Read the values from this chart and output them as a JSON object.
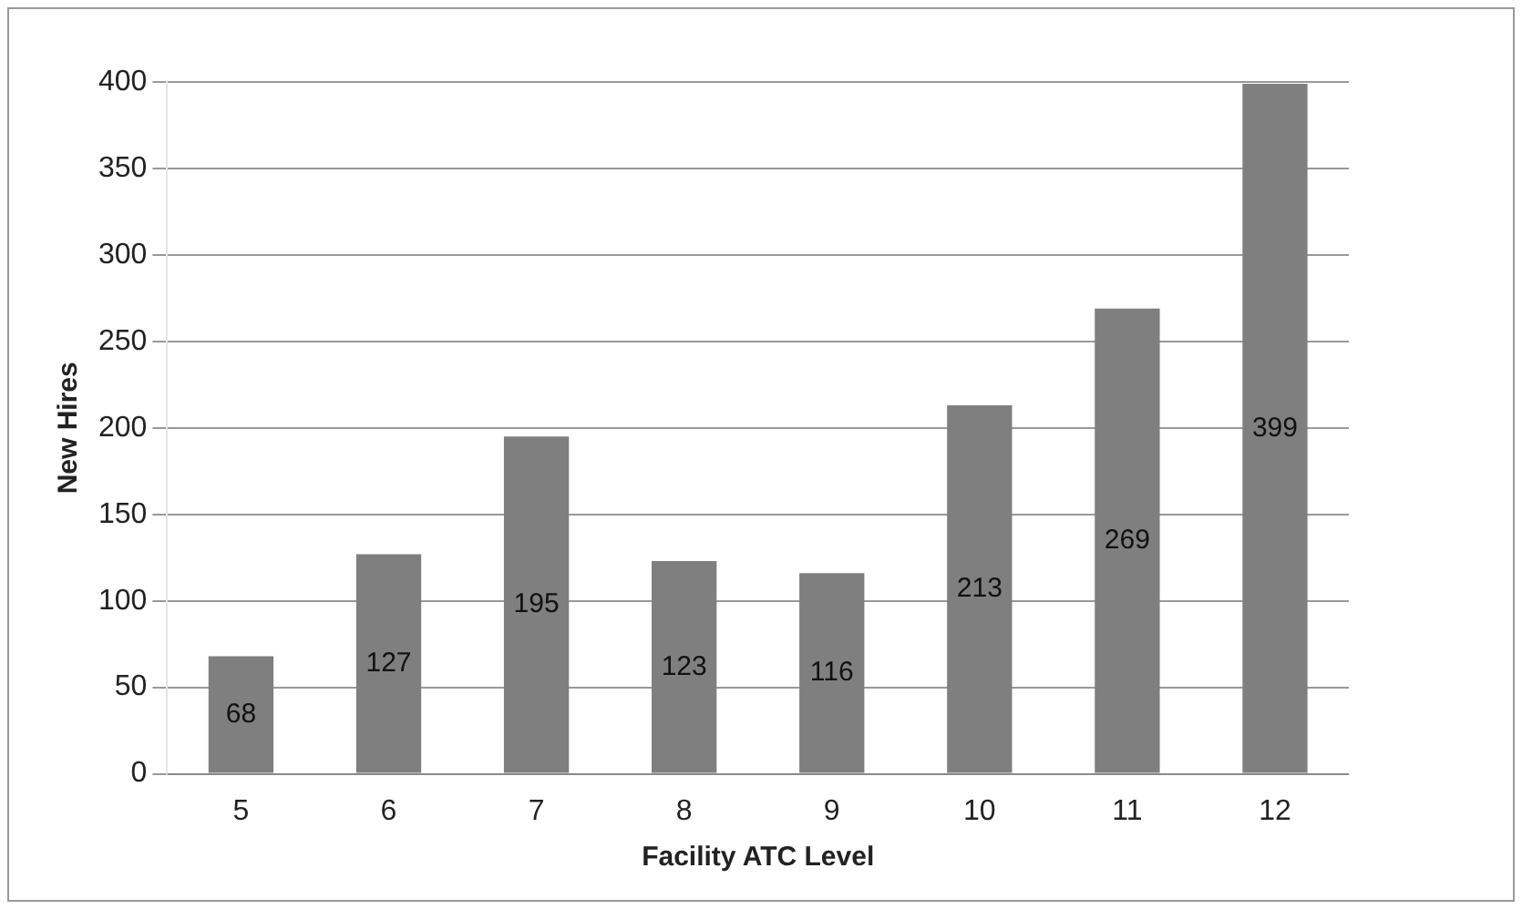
{
  "chart_data": {
    "type": "bar",
    "xlabel": "Facility ATC Level",
    "ylabel": "New Hires",
    "categories": [
      "5",
      "6",
      "7",
      "8",
      "9",
      "10",
      "11",
      "12"
    ],
    "values": [
      68,
      127,
      195,
      123,
      116,
      213,
      269,
      399
    ],
    "color": "#7f7f7f",
    "ylim": [
      0,
      400
    ],
    "yticks": [
      0,
      50,
      100,
      150,
      200,
      250,
      300,
      350,
      400
    ],
    "grid": "y",
    "data_labels": true
  }
}
